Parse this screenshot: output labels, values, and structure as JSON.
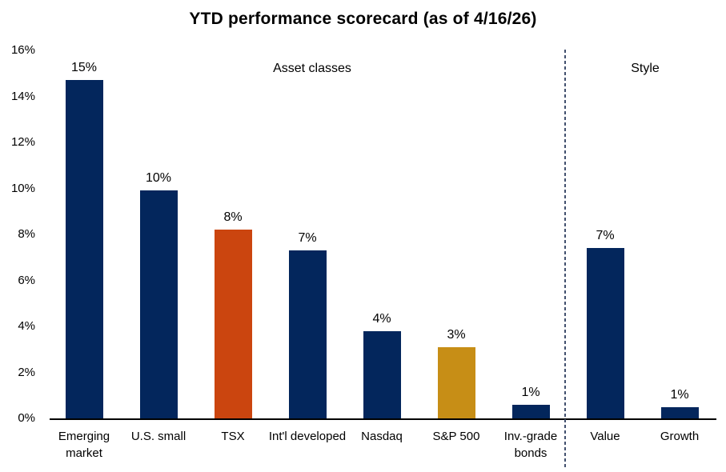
{
  "title": "YTD performance scorecard (as of 4/16/26)",
  "colors": {
    "navy": "#03265C",
    "orange": "#CB450F",
    "gold": "#C78E16",
    "divider": "#42506E",
    "axis": "#000000"
  },
  "chart_data": {
    "type": "bar",
    "title": "YTD performance scorecard (as of 4/16/26)",
    "categories": [
      "Emerging market",
      "U.S. small",
      "TSX",
      "Int'l developed",
      "Nasdaq",
      "S&P 500",
      "Inv.-grade bonds",
      "Value",
      "Growth"
    ],
    "values": [
      14.7,
      9.9,
      8.2,
      7.3,
      3.8,
      3.1,
      0.6,
      7.4,
      0.5
    ],
    "labels": [
      "15%",
      "10%",
      "8%",
      "7%",
      "4%",
      "3%",
      "1%",
      "7%",
      "1%"
    ],
    "bar_colors": [
      "navy",
      "navy",
      "orange",
      "navy",
      "navy",
      "gold",
      "navy",
      "navy",
      "navy"
    ],
    "xlabel": "",
    "ylabel": "",
    "ylim": [
      0,
      16
    ],
    "yticks": [
      "16%",
      "14%",
      "12%",
      "10%",
      "8%",
      "6%",
      "4%",
      "2%",
      "0%"
    ],
    "grid": false,
    "legend": "none",
    "group_divider_after_index": 6,
    "group_labels": [
      "Asset classes",
      "Style"
    ]
  }
}
